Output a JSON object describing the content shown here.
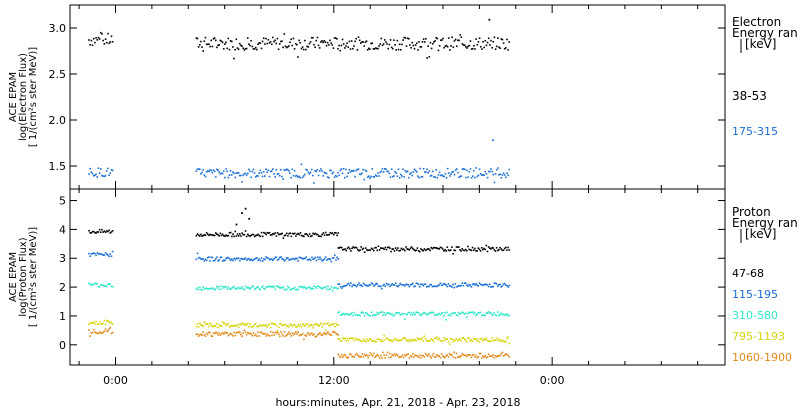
{
  "chart_data": [
    {
      "type": "scatter",
      "panel": "electron",
      "ylabel": [
        "ACE EPAM",
        "log(Electron Flux)",
        "[ 1/(cm²s ster MeV)]"
      ],
      "ylim": [
        1.25,
        3.25
      ],
      "yticks": [
        1.5,
        2.0,
        2.5,
        3.0
      ],
      "ytick_labels": [
        "1.5",
        "2.0",
        "2.5",
        "3.0"
      ],
      "legend_title": [
        "Electron",
        "Energy ran",
        "[keV]"
      ],
      "series": [
        {
          "name": "38-53",
          "color": "#000000",
          "segments": [
            [
              -1.5,
              -0.2,
              2.88
            ],
            [
              4.4,
              21.6,
              2.84
            ]
          ],
          "spikes": [
            [
              20.5,
              3.1
            ]
          ],
          "jitter": 0.07
        },
        {
          "name": "175-315",
          "color": "#1a6fd4",
          "segments": [
            [
              -1.5,
              -0.2,
              1.44
            ],
            [
              4.4,
              21.6,
              1.43
            ]
          ],
          "spikes": [
            [
              20.7,
              1.79
            ]
          ],
          "jitter": 0.05
        }
      ]
    },
    {
      "type": "scatter",
      "panel": "proton",
      "ylabel": [
        "ACE EPAM",
        "log(Proton Flux)",
        "[ 1/(cm²s ster MeV)]"
      ],
      "ylim": [
        -0.7,
        5.4
      ],
      "yticks": [
        0,
        1,
        2,
        3,
        4,
        5
      ],
      "ytick_labels": [
        "0",
        "1",
        "2",
        "3",
        "4",
        "5"
      ],
      "legend_title": [
        "Proton",
        "Energy ran",
        "[keV]"
      ],
      "series": [
        {
          "name": "47-68",
          "color": "#000000",
          "segments": [
            [
              -1.5,
              -0.2,
              3.95
            ],
            [
              4.4,
              12.2,
              3.85
            ],
            [
              12.2,
              21.6,
              3.35
            ]
          ],
          "spikes": [
            [
              6.9,
              4.6
            ],
            [
              7.1,
              4.75
            ],
            [
              7.3,
              4.4
            ],
            [
              6.6,
              4.2
            ]
          ],
          "jitter": 0.07
        },
        {
          "name": "115-195",
          "color": "#1a6fd4",
          "segments": [
            [
              -1.5,
              -0.2,
              3.15
            ],
            [
              4.4,
              12.2,
              3.0
            ],
            [
              12.2,
              21.6,
              2.1
            ]
          ],
          "spikes": [],
          "jitter": 0.07
        },
        {
          "name": "310-580",
          "color": "#2ee6c8",
          "segments": [
            [
              -1.5,
              -0.2,
              2.1
            ],
            [
              4.4,
              12.2,
              2.0
            ],
            [
              12.2,
              21.6,
              1.1
            ]
          ],
          "spikes": [],
          "jitter": 0.07
        },
        {
          "name": "795-1193",
          "color": "#d4d40c",
          "segments": [
            [
              -1.5,
              -0.2,
              0.8
            ],
            [
              4.4,
              12.2,
              0.7
            ],
            [
              12.2,
              21.6,
              0.2
            ]
          ],
          "spikes": [],
          "jitter": 0.07
        },
        {
          "name": "1060-1900",
          "color": "#e08a1a",
          "segments": [
            [
              -1.5,
              -0.2,
              0.5
            ],
            [
              4.4,
              12.2,
              0.4
            ],
            [
              12.2,
              21.6,
              -0.35
            ]
          ],
          "spikes": [],
          "jitter": 0.08
        }
      ]
    }
  ],
  "x_axis": {
    "unit": "hours since 00:00 (first day)",
    "xlim": [
      -2.5,
      33.5
    ],
    "major_ticks": [
      0,
      12,
      24
    ],
    "major_labels": [
      "0:00",
      "12:00",
      "0:00"
    ],
    "minor_ticks": [
      -2,
      2,
      4,
      6,
      8,
      10,
      14,
      16,
      18,
      20,
      22,
      26,
      28,
      30,
      32
    ],
    "xlabel": "hours:minutes, Apr. 21, 2018 - Apr. 23, 2018"
  }
}
